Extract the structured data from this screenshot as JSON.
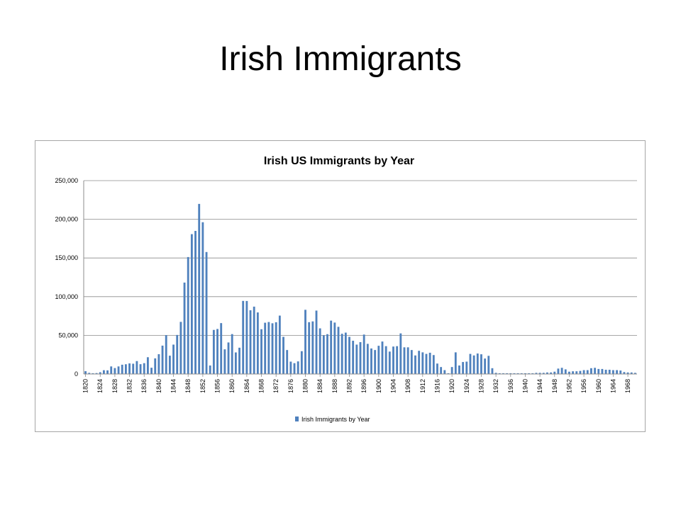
{
  "slide": {
    "title": "Irish Immigrants"
  },
  "chart_data": {
    "type": "bar",
    "title": "Irish US Immigrants by Year",
    "xlabel": "",
    "ylabel": "",
    "ylim": [
      0,
      250000
    ],
    "y_ticks": [
      "0",
      "50,000",
      "100,000",
      "150,000",
      "200,000",
      "250,000"
    ],
    "y_tick_values": [
      0,
      50000,
      100000,
      150000,
      200000,
      250000
    ],
    "grid": true,
    "legend_position": "bottom",
    "bar_color": "#4f81bd",
    "categories": [
      "1820",
      "1821",
      "1822",
      "1823",
      "1824",
      "1825",
      "1826",
      "1827",
      "1828",
      "1829",
      "1830",
      "1831",
      "1832",
      "1833",
      "1834",
      "1835",
      "1836",
      "1837",
      "1838",
      "1839",
      "1840",
      "1841",
      "1842",
      "1843",
      "1844",
      "1845",
      "1846",
      "1847",
      "1848",
      "1849",
      "1850",
      "1851",
      "1852",
      "1853",
      "1854",
      "1855",
      "1856",
      "1857",
      "1858",
      "1859",
      "1860",
      "1861",
      "1862",
      "1863",
      "1864",
      "1865",
      "1866",
      "1867",
      "1868",
      "1869",
      "1870",
      "1871",
      "1872",
      "1873",
      "1874",
      "1875",
      "1876",
      "1877",
      "1878",
      "1879",
      "1880",
      "1881",
      "1882",
      "1883",
      "1884",
      "1885",
      "1886",
      "1887",
      "1888",
      "1889",
      "1890",
      "1891",
      "1892",
      "1893",
      "1894",
      "1895",
      "1896",
      "1897",
      "1898",
      "1899",
      "1900",
      "1901",
      "1902",
      "1903",
      "1904",
      "1905",
      "1906",
      "1907",
      "1908",
      "1909",
      "1910",
      "1911",
      "1912",
      "1913",
      "1914",
      "1915",
      "1916",
      "1917",
      "1918",
      "1919",
      "1920",
      "1921",
      "1922",
      "1923",
      "1924",
      "1925",
      "1926",
      "1927",
      "1928",
      "1929",
      "1930",
      "1931",
      "1932",
      "1933",
      "1934",
      "1935",
      "1936",
      "1937",
      "1938",
      "1939",
      "1940",
      "1941",
      "1942",
      "1943",
      "1944",
      "1945",
      "1946",
      "1947",
      "1948",
      "1949",
      "1950",
      "1951",
      "1952",
      "1953",
      "1954",
      "1955",
      "1956",
      "1957",
      "1958",
      "1959",
      "1960",
      "1961",
      "1962",
      "1963",
      "1964",
      "1965",
      "1966",
      "1967",
      "1968",
      "1969",
      "1970"
    ],
    "x_tick_labels": [
      "1820",
      "1824",
      "1828",
      "1832",
      "1836",
      "1840",
      "1844",
      "1848",
      "1852",
      "1856",
      "1860",
      "1864",
      "1868",
      "1872",
      "1876",
      "1880",
      "1884",
      "1888",
      "1892",
      "1896",
      "1900",
      "1904",
      "1908",
      "1912",
      "1916",
      "1920",
      "1924",
      "1928",
      "1932",
      "1936",
      "1940",
      "1944",
      "1948",
      "1952",
      "1956",
      "1960",
      "1964",
      "1968"
    ],
    "series": [
      {
        "name": "Irish Immigrants  by Year",
        "values": [
          3600,
          1500,
          1000,
          1200,
          2300,
          4900,
          4700,
          9800,
          7700,
          9800,
          12000,
          12600,
          13700,
          13300,
          16700,
          12700,
          14000,
          21700,
          8100,
          20200,
          25600,
          36700,
          50200,
          23700,
          38000,
          50500,
          67400,
          118200,
          151200,
          180800,
          185000,
          219900,
          196200,
          157700,
          11000,
          57000,
          58200,
          65800,
          31900,
          40800,
          51600,
          27900,
          34000,
          94500,
          94400,
          82400,
          87100,
          79600,
          57900,
          66300,
          67200,
          65600,
          66900,
          75500,
          48000,
          31000,
          16000,
          14000,
          16300,
          29500,
          83000,
          67000,
          68000,
          82000,
          59000,
          50000,
          51500,
          69000,
          66500,
          61000,
          52000,
          53500,
          48000,
          43000,
          38000,
          41200,
          51000,
          39000,
          33000,
          31000,
          36500,
          42000,
          36000,
          29000,
          35500,
          36000,
          52500,
          34500,
          34500,
          31000,
          24000,
          30000,
          28000,
          26000,
          27500,
          24500,
          13500,
          9000,
          5000,
          1000,
          9000,
          28000,
          11000,
          15500,
          16000,
          26000,
          24000,
          26500,
          25500,
          20000,
          23500,
          7500,
          1500,
          1000,
          1000,
          1000,
          1000,
          1000,
          1000,
          1000,
          1000,
          1000,
          1000,
          1500,
          1500,
          1500,
          2000,
          2000,
          3000,
          7000,
          8000,
          6000,
          3000,
          3500,
          3500,
          4000,
          5000,
          5000,
          7500,
          8000,
          6500,
          6500,
          5500,
          5500,
          5000,
          5000,
          4500,
          2500,
          2000,
          2000,
          1500
        ]
      }
    ]
  }
}
